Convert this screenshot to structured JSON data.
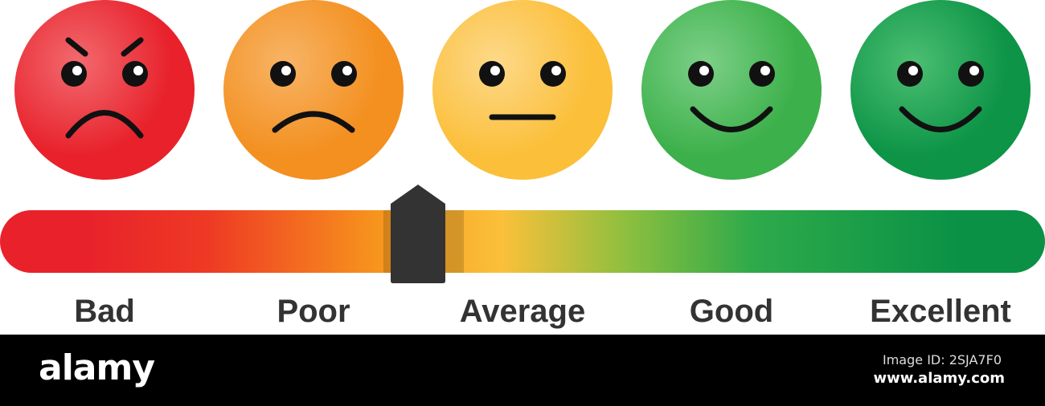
{
  "scale": {
    "labels": [
      "Bad",
      "Poor",
      "Average",
      "Good",
      "Excellent"
    ],
    "faces": [
      {
        "expression": "angry",
        "color": "#e8212b",
        "highlight": "#f26a6f"
      },
      {
        "expression": "sad",
        "color": "#f39020",
        "highlight": "#f8b466"
      },
      {
        "expression": "neutral",
        "color": "#fbbf3a",
        "highlight": "#fdd98a"
      },
      {
        "expression": "happy",
        "color": "#3cb04a",
        "highlight": "#7dd088"
      },
      {
        "expression": "very-happy",
        "color": "#0d9447",
        "highlight": "#4cbf72"
      }
    ],
    "gradient_colors": [
      "#e8212b",
      "#ee3a24",
      "#f7941d",
      "#fbc03a",
      "#8dbf3f",
      "#2eaa4a",
      "#0a9146"
    ],
    "slider_value": 0.4,
    "slider_color": "#333333"
  },
  "footer": {
    "logo": "alamy",
    "image_id": "Image ID: 2SJA7F0",
    "site": "www.alamy.com"
  }
}
